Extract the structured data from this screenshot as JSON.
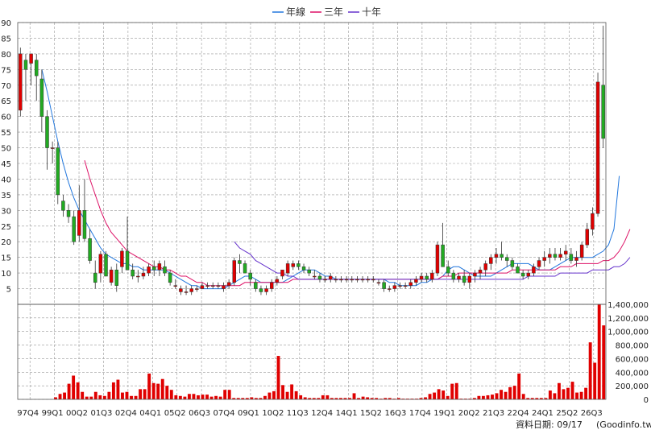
{
  "footer": {
    "date_label": "資料日期: 09/17",
    "source": "(Goodinfo.tw)"
  },
  "colors": {
    "up": "#e00000",
    "down": "#22aa22",
    "ma_year": "#2277dd",
    "ma_3y": "#dd1166",
    "ma_10y": "#6633cc",
    "volume": "#e00000",
    "grid": "#999999"
  },
  "chart_data": [
    {
      "type": "candlestick",
      "legend": {
        "placement": "top-center",
        "series": [
          {
            "name": "年線",
            "color": "#2277dd"
          },
          {
            "name": "三年",
            "color": "#dd1166"
          },
          {
            "name": "十年",
            "color": "#6633cc"
          }
        ]
      },
      "y_ticks": [
        5,
        10,
        15,
        20,
        25,
        30,
        35,
        40,
        45,
        50,
        55,
        60,
        65,
        70,
        75,
        80,
        85,
        90
      ],
      "ylim": [
        0,
        90
      ],
      "grid": true,
      "x_tick_labels": [
        "97Q4",
        "99Q1",
        "00Q2",
        "01Q3",
        "02Q4",
        "04Q1",
        "05Q2",
        "06Q3",
        "07Q4",
        "09Q1",
        "10Q2",
        "11Q3",
        "12Q4",
        "14Q1",
        "15Q2",
        "16Q3",
        "17Q4",
        "19Q1",
        "20Q2",
        "21Q3",
        "22Q4",
        "24Q1",
        "25Q2",
        "26Q3"
      ],
      "candles": [
        {
          "o": 62,
          "h": 82,
          "l": 60,
          "c": 80
        },
        {
          "o": 78,
          "h": 80,
          "l": 65,
          "c": 75
        },
        {
          "o": 77,
          "h": 80,
          "l": 70,
          "c": 80
        },
        {
          "o": 78,
          "h": 80,
          "l": 65,
          "c": 73
        },
        {
          "o": 72,
          "h": 75,
          "l": 55,
          "c": 60
        },
        {
          "o": 60,
          "h": 62,
          "l": 43,
          "c": 50
        },
        {
          "o": 50,
          "h": 52,
          "l": 45,
          "c": 50
        },
        {
          "o": 50,
          "h": 52,
          "l": 32,
          "c": 35
        },
        {
          "o": 33,
          "h": 35,
          "l": 28,
          "c": 30
        },
        {
          "o": 30,
          "h": 32,
          "l": 26,
          "c": 28
        },
        {
          "o": 28,
          "h": 30,
          "l": 19,
          "c": 20
        },
        {
          "o": 22,
          "h": 38,
          "l": 20,
          "c": 30
        },
        {
          "o": 30,
          "h": 40,
          "l": 20,
          "c": 21
        },
        {
          "o": 21,
          "h": 24,
          "l": 13,
          "c": 14
        },
        {
          "o": 10,
          "h": 14,
          "l": 5,
          "c": 7
        },
        {
          "o": 10,
          "h": 17,
          "l": 7,
          "c": 16
        },
        {
          "o": 16,
          "h": 17,
          "l": 9,
          "c": 9
        },
        {
          "o": 7,
          "h": 12,
          "l": 6,
          "c": 11
        },
        {
          "o": 11,
          "h": 13,
          "l": 4,
          "c": 6
        },
        {
          "o": 12,
          "h": 18,
          "l": 10,
          "c": 17
        },
        {
          "o": 17,
          "h": 28,
          "l": 11,
          "c": 11
        },
        {
          "o": 11,
          "h": 13,
          "l": 8,
          "c": 9
        },
        {
          "o": 9,
          "h": 11,
          "l": 7,
          "c": 9
        },
        {
          "o": 9,
          "h": 12,
          "l": 8,
          "c": 10
        },
        {
          "o": 10,
          "h": 13,
          "l": 9,
          "c": 12
        },
        {
          "o": 12,
          "h": 14,
          "l": 9,
          "c": 11
        },
        {
          "o": 11,
          "h": 14,
          "l": 9,
          "c": 13
        },
        {
          "o": 12,
          "h": 14,
          "l": 9,
          "c": 10
        },
        {
          "o": 10,
          "h": 11,
          "l": 6,
          "c": 7
        },
        {
          "o": 6,
          "h": 8,
          "l": 5,
          "c": 6
        },
        {
          "o": 4,
          "h": 6,
          "l": 3,
          "c": 5
        },
        {
          "o": 4,
          "h": 6,
          "l": 3,
          "c": 4
        },
        {
          "o": 4,
          "h": 6,
          "l": 3,
          "c": 5
        },
        {
          "o": 5,
          "h": 6,
          "l": 4,
          "c": 5
        },
        {
          "o": 5,
          "h": 7,
          "l": 5,
          "c": 6
        },
        {
          "o": 6,
          "h": 7,
          "l": 5,
          "c": 6
        },
        {
          "o": 6,
          "h": 7,
          "l": 5,
          "c": 6
        },
        {
          "o": 6,
          "h": 7,
          "l": 5,
          "c": 6
        },
        {
          "o": 5,
          "h": 7,
          "l": 4,
          "c": 6
        },
        {
          "o": 6,
          "h": 8,
          "l": 5,
          "c": 7
        },
        {
          "o": 7,
          "h": 15,
          "l": 6,
          "c": 14
        },
        {
          "o": 14,
          "h": 16,
          "l": 10,
          "c": 13
        },
        {
          "o": 13,
          "h": 14,
          "l": 10,
          "c": 10
        },
        {
          "o": 10,
          "h": 11,
          "l": 6,
          "c": 8
        },
        {
          "o": 7,
          "h": 8,
          "l": 4,
          "c": 5
        },
        {
          "o": 5,
          "h": 6,
          "l": 3,
          "c": 4
        },
        {
          "o": 4,
          "h": 6,
          "l": 3,
          "c": 5
        },
        {
          "o": 5,
          "h": 8,
          "l": 4,
          "c": 7
        },
        {
          "o": 7,
          "h": 9,
          "l": 6,
          "c": 8
        },
        {
          "o": 9,
          "h": 11,
          "l": 8,
          "c": 11
        },
        {
          "o": 10,
          "h": 14,
          "l": 9,
          "c": 13
        },
        {
          "o": 12,
          "h": 14,
          "l": 11,
          "c": 13
        },
        {
          "o": 13,
          "h": 14,
          "l": 11,
          "c": 12
        },
        {
          "o": 12,
          "h": 13,
          "l": 10,
          "c": 11
        },
        {
          "o": 11,
          "h": 12,
          "l": 9,
          "c": 10
        },
        {
          "o": 9,
          "h": 11,
          "l": 8,
          "c": 9
        },
        {
          "o": 9,
          "h": 10,
          "l": 7,
          "c": 8
        },
        {
          "o": 8,
          "h": 9,
          "l": 7,
          "c": 8
        },
        {
          "o": 8,
          "h": 10,
          "l": 7,
          "c": 9
        },
        {
          "o": 8,
          "h": 9,
          "l": 7,
          "c": 8
        },
        {
          "o": 8,
          "h": 9,
          "l": 7,
          "c": 8
        },
        {
          "o": 8,
          "h": 9,
          "l": 7,
          "c": 8
        },
        {
          "o": 8,
          "h": 9,
          "l": 7,
          "c": 8
        },
        {
          "o": 8,
          "h": 9,
          "l": 7,
          "c": 8
        },
        {
          "o": 8,
          "h": 9,
          "l": 7,
          "c": 8
        },
        {
          "o": 8,
          "h": 9,
          "l": 7,
          "c": 8
        },
        {
          "o": 8,
          "h": 9,
          "l": 7,
          "c": 8
        },
        {
          "o": 7,
          "h": 8,
          "l": 6,
          "c": 7
        },
        {
          "o": 7,
          "h": 8,
          "l": 4,
          "c": 5
        },
        {
          "o": 5,
          "h": 6,
          "l": 4,
          "c": 5
        },
        {
          "o": 5,
          "h": 7,
          "l": 4,
          "c": 6
        },
        {
          "o": 6,
          "h": 7,
          "l": 5,
          "c": 6
        },
        {
          "o": 6,
          "h": 7,
          "l": 5,
          "c": 6
        },
        {
          "o": 6,
          "h": 8,
          "l": 5,
          "c": 7
        },
        {
          "o": 7,
          "h": 9,
          "l": 6,
          "c": 8
        },
        {
          "o": 8,
          "h": 10,
          "l": 7,
          "c": 9
        },
        {
          "o": 9,
          "h": 10,
          "l": 7,
          "c": 8
        },
        {
          "o": 8,
          "h": 11,
          "l": 7,
          "c": 10
        },
        {
          "o": 10,
          "h": 20,
          "l": 9,
          "c": 19
        },
        {
          "o": 19,
          "h": 26,
          "l": 12,
          "c": 12
        },
        {
          "o": 12,
          "h": 14,
          "l": 9,
          "c": 10
        },
        {
          "o": 10,
          "h": 11,
          "l": 7,
          "c": 8
        },
        {
          "o": 8,
          "h": 10,
          "l": 7,
          "c": 9
        },
        {
          "o": 9,
          "h": 11,
          "l": 6,
          "c": 7
        },
        {
          "o": 7,
          "h": 10,
          "l": 5,
          "c": 9
        },
        {
          "o": 9,
          "h": 11,
          "l": 7,
          "c": 10
        },
        {
          "o": 10,
          "h": 12,
          "l": 8,
          "c": 11
        },
        {
          "o": 11,
          "h": 14,
          "l": 9,
          "c": 13
        },
        {
          "o": 13,
          "h": 16,
          "l": 11,
          "c": 15
        },
        {
          "o": 15,
          "h": 18,
          "l": 13,
          "c": 16
        },
        {
          "o": 16,
          "h": 20,
          "l": 14,
          "c": 15
        },
        {
          "o": 15,
          "h": 16,
          "l": 12,
          "c": 14
        },
        {
          "o": 14,
          "h": 15,
          "l": 11,
          "c": 12
        },
        {
          "o": 12,
          "h": 13,
          "l": 10,
          "c": 10
        },
        {
          "o": 10,
          "h": 11,
          "l": 8,
          "c": 9
        },
        {
          "o": 9,
          "h": 11,
          "l": 8,
          "c": 10
        },
        {
          "o": 10,
          "h": 13,
          "l": 9,
          "c": 12
        },
        {
          "o": 12,
          "h": 15,
          "l": 11,
          "c": 14
        },
        {
          "o": 14,
          "h": 17,
          "l": 12,
          "c": 15
        },
        {
          "o": 15,
          "h": 18,
          "l": 13,
          "c": 16
        },
        {
          "o": 16,
          "h": 18,
          "l": 14,
          "c": 15
        },
        {
          "o": 15,
          "h": 18,
          "l": 14,
          "c": 16
        },
        {
          "o": 16,
          "h": 19,
          "l": 14,
          "c": 17
        },
        {
          "o": 16,
          "h": 18,
          "l": 13,
          "c": 14
        },
        {
          "o": 14,
          "h": 17,
          "l": 12,
          "c": 15
        },
        {
          "o": 15,
          "h": 20,
          "l": 14,
          "c": 19
        },
        {
          "o": 19,
          "h": 26,
          "l": 18,
          "c": 24
        },
        {
          "o": 24,
          "h": 31,
          "l": 22,
          "c": 29
        },
        {
          "o": 29,
          "h": 74,
          "l": 28,
          "c": 71
        },
        {
          "o": 70,
          "h": 89,
          "l": 50,
          "c": 53
        }
      ],
      "ma_year": [
        null,
        null,
        null,
        null,
        75,
        68,
        60,
        52,
        45,
        39,
        34,
        30,
        27,
        24,
        21,
        18,
        16,
        15,
        14,
        13,
        13,
        12,
        12,
        11,
        11,
        11,
        11,
        11,
        10,
        9,
        8,
        7,
        6,
        6,
        5,
        5,
        5,
        5,
        5,
        6,
        7,
        8,
        9,
        9,
        8,
        7,
        7,
        7,
        7,
        7,
        8,
        9,
        10,
        11,
        11,
        11,
        10,
        9,
        9,
        8,
        8,
        8,
        8,
        8,
        8,
        8,
        8,
        8,
        8,
        7,
        7,
        6,
        6,
        6,
        6,
        7,
        7,
        8,
        8,
        9,
        11,
        12,
        12,
        11,
        10,
        9,
        9,
        9,
        9,
        10,
        11,
        12,
        13,
        13,
        13,
        13,
        12,
        11,
        11,
        11,
        12,
        13,
        14,
        15,
        15,
        15,
        15,
        15,
        16,
        17,
        19,
        24,
        41
      ],
      "ma_3y": [
        null,
        null,
        null,
        null,
        null,
        null,
        null,
        null,
        null,
        null,
        null,
        null,
        46,
        40,
        35,
        30,
        26,
        23,
        21,
        19,
        17,
        16,
        15,
        14,
        13,
        12,
        12,
        11,
        11,
        10,
        9,
        9,
        8,
        7,
        7,
        6,
        6,
        6,
        6,
        6,
        6,
        6,
        7,
        7,
        7,
        7,
        7,
        7,
        7,
        7,
        7,
        8,
        8,
        8,
        8,
        8,
        8,
        8,
        8,
        8,
        8,
        8,
        8,
        8,
        8,
        8,
        8,
        8,
        8,
        8,
        8,
        8,
        8,
        8,
        8,
        8,
        8,
        8,
        8,
        9,
        9,
        9,
        10,
        10,
        10,
        10,
        10,
        10,
        10,
        10,
        10,
        10,
        11,
        11,
        11,
        11,
        11,
        11,
        11,
        11,
        11,
        12,
        12,
        12,
        13,
        13,
        13,
        13,
        13,
        14,
        14,
        15,
        17,
        20,
        24
      ],
      "ma_10y": [
        null,
        null,
        null,
        null,
        null,
        null,
        null,
        null,
        null,
        null,
        null,
        null,
        null,
        null,
        null,
        null,
        null,
        null,
        null,
        null,
        null,
        null,
        null,
        null,
        null,
        null,
        null,
        null,
        null,
        null,
        null,
        null,
        null,
        null,
        null,
        null,
        null,
        null,
        null,
        null,
        20,
        18,
        17,
        16,
        14,
        13,
        12,
        11,
        10,
        10,
        9,
        9,
        8,
        8,
        8,
        8,
        8,
        8,
        8,
        8,
        8,
        8,
        8,
        8,
        8,
        8,
        8,
        8,
        8,
        8,
        8,
        8,
        8,
        8,
        8,
        8,
        8,
        8,
        8,
        8,
        8,
        8,
        8,
        8,
        8,
        8,
        8,
        8,
        8,
        8,
        8,
        8,
        8,
        8,
        8,
        9,
        9,
        9,
        9,
        9,
        9,
        10,
        10,
        10,
        10,
        10,
        10,
        11,
        11,
        11,
        11,
        12,
        12,
        13,
        15
      ]
    },
    {
      "type": "bar",
      "series": [
        {
          "name": "",
          "values": [
            0,
            0,
            0,
            0,
            0,
            0,
            0,
            0,
            30000,
            80000,
            100000,
            230000,
            350000,
            250000,
            110000,
            40000,
            40000,
            110000,
            60000,
            50000,
            110000,
            250000,
            290000,
            100000,
            110000,
            50000,
            50000,
            150000,
            150000,
            380000,
            240000,
            230000,
            300000,
            200000,
            140000,
            60000,
            50000,
            40000,
            80000,
            80000,
            60000,
            70000,
            70000,
            40000,
            50000,
            40000,
            140000,
            140000,
            20000,
            20000,
            20000,
            20000,
            30000,
            20000,
            20000,
            50000,
            100000,
            120000,
            640000,
            210000,
            110000,
            220000,
            120000,
            60000,
            30000,
            20000,
            20000,
            20000,
            60000,
            60000,
            20000,
            20000,
            20000,
            20000,
            20000,
            90000,
            20000,
            40000,
            30000,
            20000,
            20000,
            10000,
            20000,
            20000,
            10000,
            20000,
            10000,
            10000,
            10000,
            10000,
            20000,
            30000,
            80000,
            100000,
            150000,
            130000,
            50000,
            230000,
            240000,
            10000,
            10000,
            10000,
            20000,
            50000,
            50000,
            60000,
            70000,
            90000,
            140000,
            110000,
            180000,
            200000,
            380000,
            80000,
            20000,
            20000,
            20000,
            20000,
            20000,
            130000,
            90000,
            240000,
            150000,
            170000,
            260000,
            100000,
            110000,
            170000,
            840000,
            540000,
            1400000,
            1090000
          ]
        }
      ],
      "y_ticks": [
        0,
        200000,
        400000,
        600000,
        800000,
        1000000,
        1200000,
        1400000
      ],
      "y_tick_labels": [
        "0",
        "200,000",
        "400,000",
        "600,000",
        "800,000",
        "1,000,000",
        "1,200,000",
        "1,400,000"
      ],
      "ylim": [
        0,
        1400000
      ],
      "grid": true
    }
  ]
}
